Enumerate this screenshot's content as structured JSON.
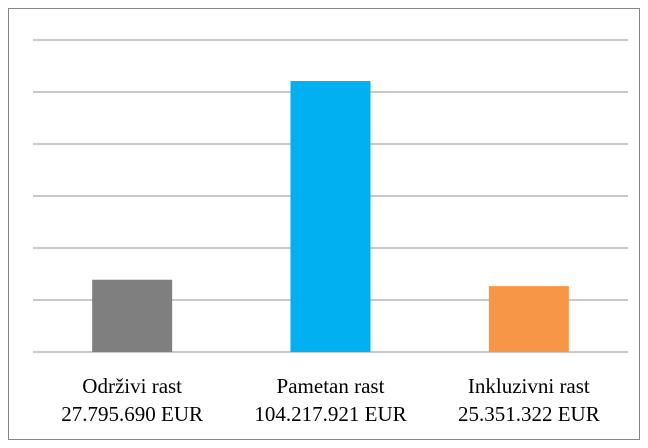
{
  "chart_data": {
    "type": "bar",
    "categories": [
      "Održivi rast",
      "Pametan rast",
      "Inkluzivni rast"
    ],
    "values": [
      27795690,
      104217921,
      25351322
    ],
    "value_labels": [
      "27.795.690 EUR",
      "104.217.921 EUR",
      "25.351.322 EUR"
    ],
    "colors": [
      "#7f7f7f",
      "#00b0f0",
      "#f79646"
    ],
    "ylim": [
      0,
      120000000
    ],
    "yticks": [
      0,
      20000000,
      40000000,
      60000000,
      80000000,
      100000000,
      120000000
    ],
    "grid": true
  }
}
